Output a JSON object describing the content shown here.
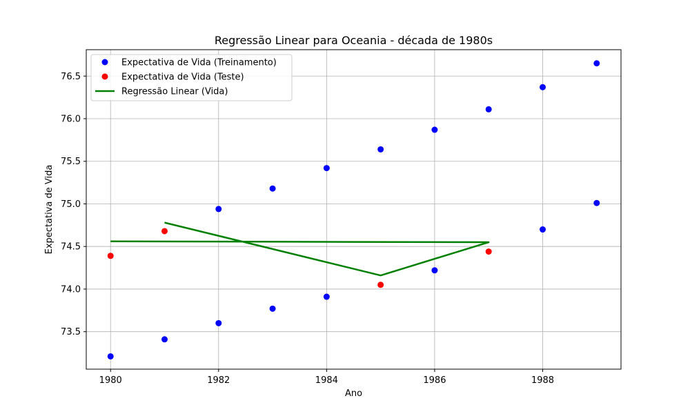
{
  "chart_data": {
    "type": "scatter",
    "title": "Regressão Linear para Oceania - década de 1980s",
    "xlabel": "Ano",
    "ylabel": "Expectativa de Vida",
    "xlim": [
      1979.55,
      1989.45
    ],
    "ylim": [
      73.06,
      76.81
    ],
    "xticks": [
      1980,
      1982,
      1984,
      1986,
      1988
    ],
    "yticks": [
      73.5,
      74.0,
      74.5,
      75.0,
      75.5,
      76.0,
      76.5
    ],
    "xtick_labels": [
      "1980",
      "1982",
      "1984",
      "1986",
      "1988"
    ],
    "ytick_labels": [
      "73.5",
      "74.0",
      "74.5",
      "75.0",
      "75.5",
      "76.0",
      "76.5"
    ],
    "grid": true,
    "legend_position": "top-left",
    "series": [
      {
        "name": "Expectativa de Vida (Treinamento)",
        "kind": "scatter",
        "color": "#0000ff",
        "points": [
          [
            1980,
            73.21
          ],
          [
            1981,
            73.41
          ],
          [
            1982,
            73.6
          ],
          [
            1983,
            73.77
          ],
          [
            1984,
            73.91
          ],
          [
            1986,
            74.22
          ],
          [
            1988,
            74.7
          ],
          [
            1989,
            75.01
          ],
          [
            1982,
            74.94
          ],
          [
            1983,
            75.18
          ],
          [
            1984,
            75.42
          ],
          [
            1985,
            75.64
          ],
          [
            1986,
            75.87
          ],
          [
            1987,
            76.11
          ],
          [
            1988,
            76.37
          ],
          [
            1989,
            76.65
          ]
        ]
      },
      {
        "name": "Expectativa de Vida (Teste)",
        "kind": "scatter",
        "color": "#ff0000",
        "points": [
          [
            1980,
            74.39
          ],
          [
            1981,
            74.68
          ],
          [
            1985,
            74.05
          ],
          [
            1987,
            74.44
          ]
        ]
      },
      {
        "name": "Regressão Linear (Vida)",
        "kind": "line",
        "color": "#008000",
        "points": [
          [
            1980,
            74.56
          ],
          [
            1987,
            74.55
          ],
          [
            1985,
            74.16
          ],
          [
            1981,
            74.78
          ]
        ]
      }
    ]
  }
}
